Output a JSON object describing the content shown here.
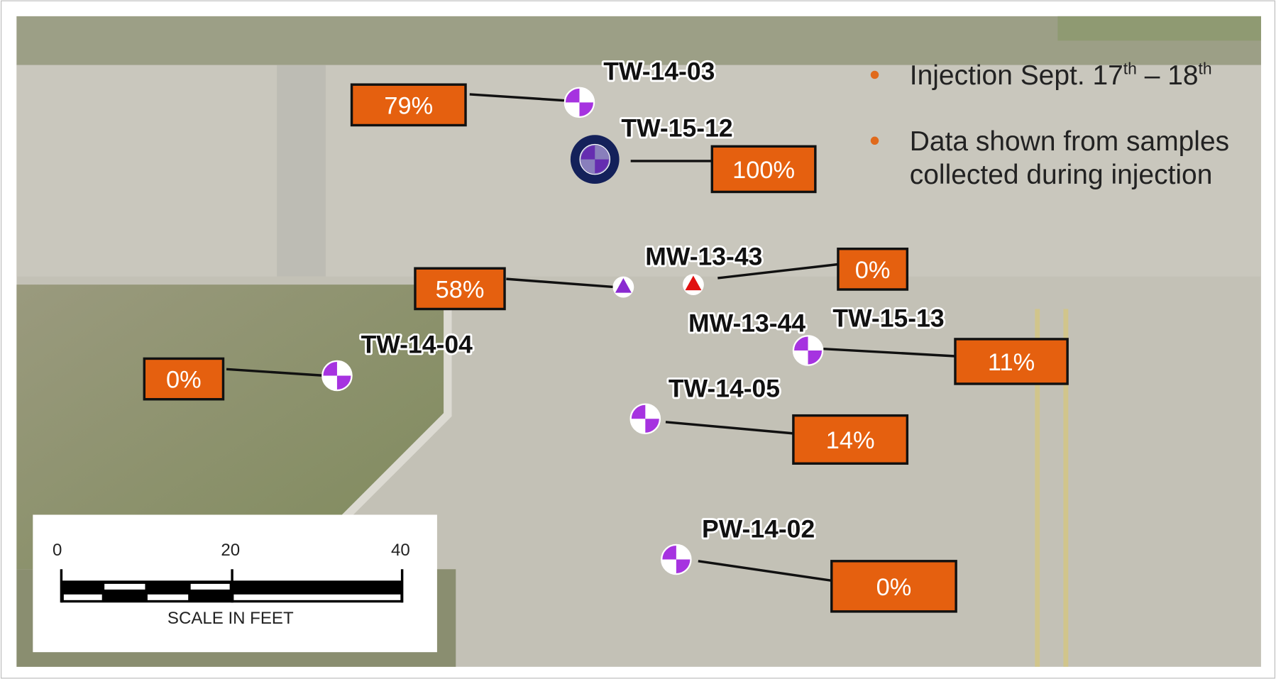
{
  "wells": [
    {
      "name": "TW-14-03",
      "percent": "79%"
    },
    {
      "name": "TW-15-12",
      "percent": "100%"
    },
    {
      "name": "MW-13-43",
      "percent": "58%"
    },
    {
      "name": "MW-13-44",
      "percent": "0%"
    },
    {
      "name": "TW-15-13",
      "percent": "11%"
    },
    {
      "name": "TW-14-04",
      "percent": "0%"
    },
    {
      "name": "TW-14-05",
      "percent": "14%"
    },
    {
      "name": "PW-14-02",
      "percent": "0%"
    }
  ],
  "notes": [
    {
      "parts": [
        "Injection Sept. 17",
        "th",
        " – 18",
        "th"
      ]
    },
    {
      "lines": [
        "Data shown from samples",
        "collected during injection"
      ]
    }
  ],
  "scale": {
    "ticks": [
      "0",
      "20",
      "40"
    ],
    "caption": "SCALE IN FEET"
  }
}
